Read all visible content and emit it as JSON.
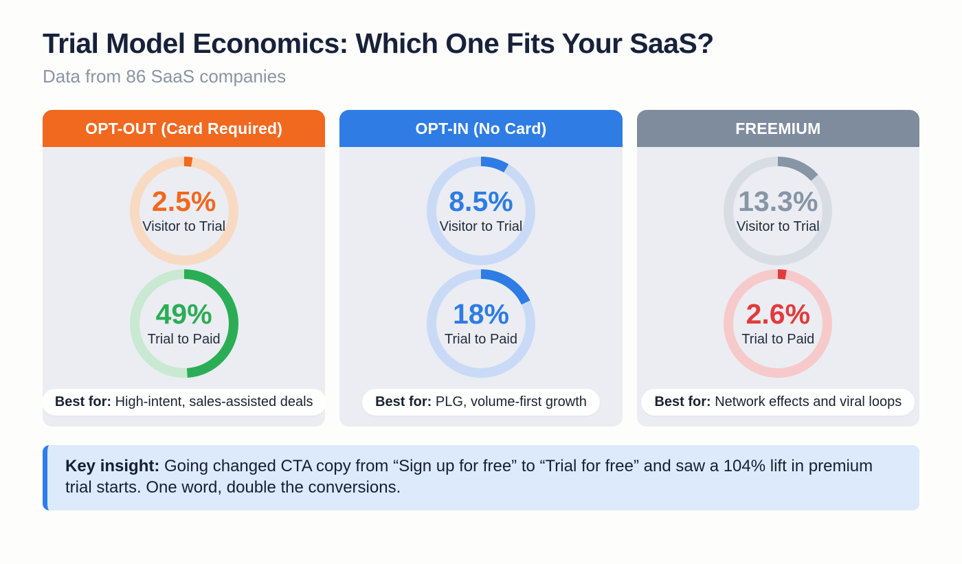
{
  "page": {
    "title": "Trial Model Economics: Which One Fits Your SaaS?",
    "subtitle": "Data from 86 SaaS companies"
  },
  "cards": [
    {
      "header": "OPT-OUT (Card Required)",
      "header_color": "#F1681F",
      "metrics": [
        {
          "value": 2.5,
          "display": "2.5%",
          "label": "Visitor to Trial",
          "color": "#F1681F",
          "track_color": "#F8DAC3"
        },
        {
          "value": 49,
          "display": "49%",
          "label": "Trial to Paid",
          "color": "#2BAD56",
          "track_color": "#C9E9D2"
        }
      ],
      "best_for_label": "Best for:",
      "best_for_text": " High-intent, sales-assisted deals"
    },
    {
      "header": "OPT-IN (No Card)",
      "header_color": "#2E7CE4",
      "metrics": [
        {
          "value": 8.5,
          "display": "8.5%",
          "label": "Visitor to Trial",
          "color": "#2E7CE4",
          "track_color": "#C9DAF7"
        },
        {
          "value": 18,
          "display": "18%",
          "label": "Trial to Paid",
          "color": "#2E7CE4",
          "track_color": "#C9DAF7"
        }
      ],
      "best_for_label": "Best for:",
      "best_for_text": " PLG, volume-first growth"
    },
    {
      "header": "FREEMIUM",
      "header_color": "#7E8C9E",
      "metrics": [
        {
          "value": 13.3,
          "display": "13.3%",
          "label": "Visitor to Trial",
          "color": "#8795A5",
          "track_color": "#D8DDE3"
        },
        {
          "value": 2.6,
          "display": "2.6%",
          "label": "Trial to Paid",
          "color": "#E23B3B",
          "track_color": "#F6CACA"
        }
      ],
      "best_for_label": "Best for:",
      "best_for_text": " Network effects and viral loops"
    }
  ],
  "key_insight": {
    "label": "Key insight:",
    "text": " Going changed CTA copy from “Sign up for free” to “Trial for free” and saw a 104% lift in premium trial starts. One word, double the conversions."
  },
  "chart_data": {
    "type": "pie",
    "subtype": "donut-progress-group",
    "title": "Trial Model Economics: Which One Fits Your SaaS?",
    "subtitle": "Data from 86 SaaS companies",
    "metric_labels": [
      "Visitor to Trial",
      "Trial to Paid"
    ],
    "groups": [
      {
        "model": "OPT-OUT (Card Required)",
        "visitor_to_trial_pct": 2.5,
        "trial_to_paid_pct": 49,
        "best_for": "High-intent, sales-assisted deals"
      },
      {
        "model": "OPT-IN (No Card)",
        "visitor_to_trial_pct": 8.5,
        "trial_to_paid_pct": 18,
        "best_for": "PLG, volume-first growth"
      },
      {
        "model": "FREEMIUM",
        "visitor_to_trial_pct": 13.3,
        "trial_to_paid_pct": 2.6,
        "best_for": "Network effects and viral loops"
      }
    ],
    "donut_range": [
      0,
      100
    ],
    "arc_start": "top",
    "arc_direction": "clockwise"
  }
}
